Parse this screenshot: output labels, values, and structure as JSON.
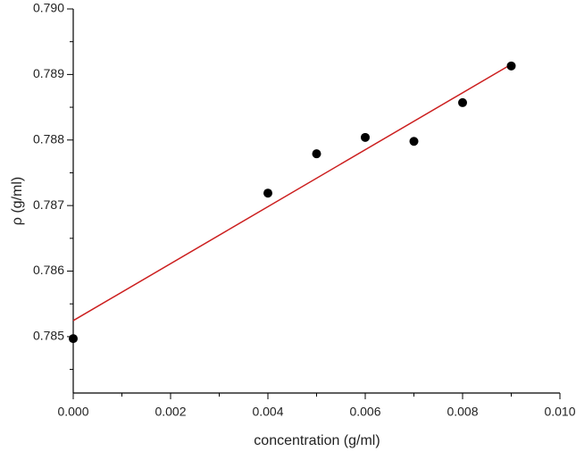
{
  "chart_data": {
    "type": "scatter",
    "xlabel": "concentration (g/ml)",
    "ylabel": "ρ (g/ml)",
    "xlim": [
      0,
      0.01
    ],
    "ylim": [
      0.78414,
      0.79
    ],
    "xticks": [
      {
        "value": 0,
        "label": "0.000"
      },
      0.002,
      0.004,
      0.006,
      0.008,
      {
        "value": 0.01,
        "label": "0.010"
      }
    ],
    "yticks": [
      0.785,
      0.786,
      0.787,
      0.788,
      0.789,
      {
        "value": 0.79,
        "label": "0.790"
      }
    ],
    "series": [
      {
        "type": "scatter",
        "color": "#000000",
        "x": [
          0,
          0.004,
          0.005,
          0.006,
          0.007,
          0.008,
          0.009
        ],
        "values": [
          0.78497,
          0.78719,
          0.78779,
          0.78804,
          0.78798,
          0.78857,
          0.78913
        ]
      },
      {
        "type": "line",
        "color": "#cc1f1f",
        "x": [
          0,
          0.009
        ],
        "values": [
          0.785245,
          0.789155
        ]
      }
    ]
  }
}
